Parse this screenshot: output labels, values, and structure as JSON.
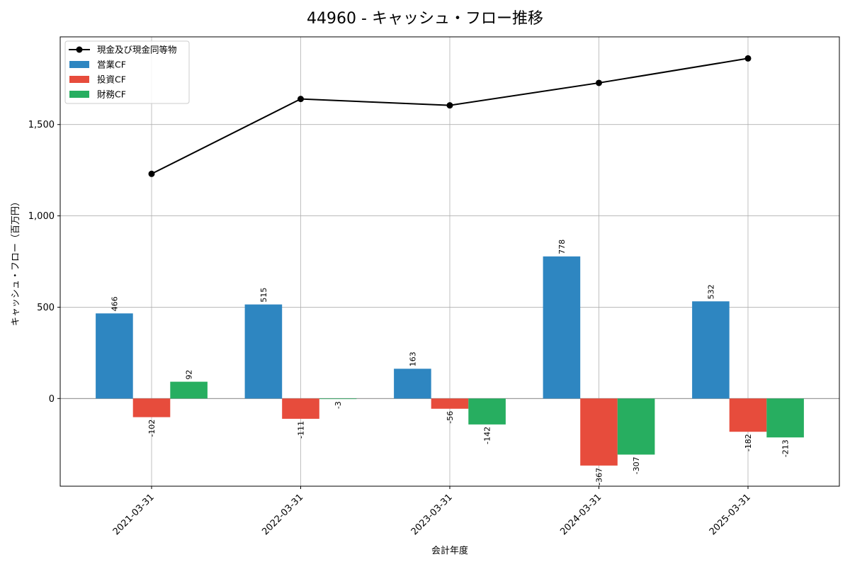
{
  "chart_data": {
    "type": "bar",
    "title": "44960 - キャッシュ・フロー推移",
    "xlabel": "会計年度",
    "ylabel": "キャッシュ・フロー（百万円）",
    "categories": [
      "2021-03-31",
      "2022-03-31",
      "2023-03-31",
      "2024-03-31",
      "2025-03-31"
    ],
    "series": [
      {
        "name": "営業CF",
        "type": "bar",
        "color": "#2e86c1",
        "values": [
          466,
          515,
          163,
          778,
          532
        ]
      },
      {
        "name": "投資CF",
        "type": "bar",
        "color": "#e74c3c",
        "values": [
          -102,
          -111,
          -56,
          -367,
          -182
        ]
      },
      {
        "name": "財務CF",
        "type": "bar",
        "color": "#27ae60",
        "values": [
          92,
          -3,
          -142,
          -307,
          -213
        ]
      },
      {
        "name": "現金及び現金同等物",
        "type": "line",
        "color": "#000000",
        "values": [
          1230,
          1640,
          1605,
          1728,
          1862
        ]
      }
    ],
    "ylim": [
      -480,
      1980
    ],
    "yticks": [
      0,
      500,
      1000,
      1500
    ],
    "ytick_labels": [
      "0",
      "500",
      "1,000",
      "1,500"
    ],
    "grid": true,
    "legend_position": "upper-left"
  }
}
